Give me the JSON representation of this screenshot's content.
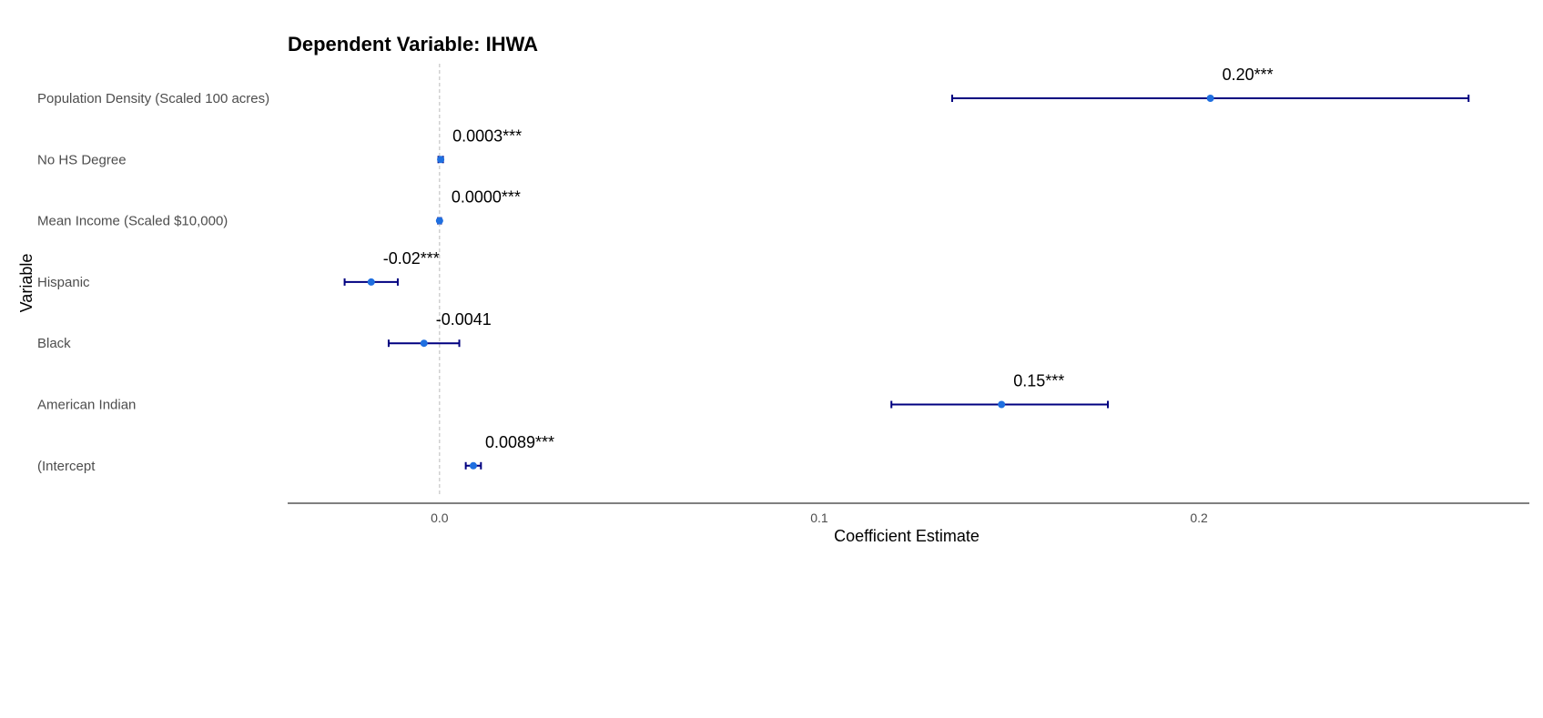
{
  "chart_data": {
    "type": "coefficient-plot",
    "title": "Dependent Variable: IHWA",
    "xlabel": "Coefficient Estimate",
    "ylabel": "Variable",
    "xlim": [
      -0.04,
      0.287
    ],
    "xticks": [
      0.0,
      0.1,
      0.2
    ],
    "xtick_labels": [
      "0.0",
      "0.1",
      "0.2"
    ],
    "reference_line": 0,
    "grid": false,
    "colors": {
      "point": "#1f6fe0",
      "errorbar": "#000080",
      "refline": "#bbbbbb",
      "axis": "#000000"
    },
    "rows": [
      {
        "label": "Population Density (Scaled 100 acres)",
        "estimate": 0.203,
        "ci_low": 0.135,
        "ci_high": 0.271,
        "annotation": "0.20***"
      },
      {
        "label": "No HS Degree",
        "estimate": 0.0003,
        "ci_low": -0.0003,
        "ci_high": 0.0009,
        "annotation": "0.0003***"
      },
      {
        "label": "Mean Income (Scaled $10,000)",
        "estimate": 0.0,
        "ci_low": -0.0004,
        "ci_high": 0.0004,
        "annotation": "0.0000***"
      },
      {
        "label": "Hispanic",
        "estimate": -0.018,
        "ci_low": -0.025,
        "ci_high": -0.011,
        "annotation": "-0.02***"
      },
      {
        "label": "Black",
        "estimate": -0.0041,
        "ci_low": -0.0134,
        "ci_high": 0.0052,
        "annotation": "-0.0041"
      },
      {
        "label": "American Indian",
        "estimate": 0.148,
        "ci_low": 0.119,
        "ci_high": 0.176,
        "annotation": "0.15***"
      },
      {
        "label": "(Intercept",
        "estimate": 0.0089,
        "ci_low": 0.0069,
        "ci_high": 0.0109,
        "annotation": "0.0089***"
      }
    ]
  }
}
